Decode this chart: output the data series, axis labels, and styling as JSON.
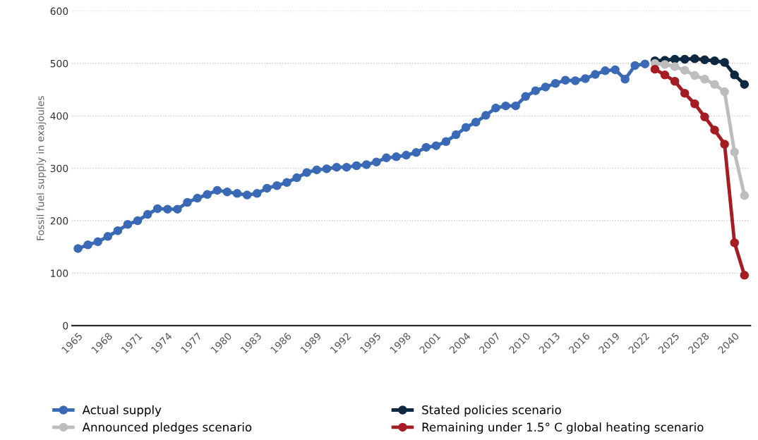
{
  "chart_data": {
    "type": "line",
    "ylabel": "Fossil fuel supply in exajoules",
    "categories": [
      "1965",
      null,
      null,
      "1968",
      null,
      null,
      "1971",
      null,
      null,
      "1974",
      null,
      null,
      "1977",
      null,
      null,
      "1980",
      null,
      null,
      "1983",
      null,
      null,
      "1986",
      null,
      null,
      "1989",
      null,
      null,
      "1992",
      null,
      null,
      "1995",
      null,
      null,
      "1998",
      null,
      null,
      "2001",
      null,
      null,
      "2004",
      null,
      null,
      "2007",
      null,
      null,
      "2010",
      null,
      null,
      "2013",
      null,
      null,
      "2016",
      null,
      null,
      "2019",
      null,
      null,
      "2022",
      null,
      null,
      "2025",
      null,
      null,
      "2028",
      null,
      null,
      "2040",
      null
    ],
    "series": [
      {
        "name": "Actual supply",
        "color": "#3a6ab5",
        "values": [
          147,
          154,
          160,
          170,
          181,
          193,
          200,
          212,
          223,
          222,
          222,
          235,
          243,
          250,
          258,
          255,
          252,
          249,
          252,
          262,
          267,
          273,
          282,
          292,
          297,
          299,
          302,
          302,
          305,
          307,
          312,
          320,
          322,
          325,
          330,
          340,
          343,
          351,
          364,
          378,
          388,
          401,
          415,
          419,
          419,
          437,
          448,
          455,
          462,
          468,
          467,
          471,
          479,
          486,
          488,
          470,
          496,
          499,
          null,
          null,
          null,
          null,
          null,
          null,
          null,
          null,
          null,
          null
        ]
      },
      {
        "name": "Stated policies scenario",
        "color": "#0e2841",
        "values": [
          null,
          null,
          null,
          null,
          null,
          null,
          null,
          null,
          null,
          null,
          null,
          null,
          null,
          null,
          null,
          null,
          null,
          null,
          null,
          null,
          null,
          null,
          null,
          null,
          null,
          null,
          null,
          null,
          null,
          null,
          null,
          null,
          null,
          null,
          null,
          null,
          null,
          null,
          null,
          null,
          null,
          null,
          null,
          null,
          null,
          null,
          null,
          null,
          null,
          null,
          null,
          null,
          null,
          null,
          null,
          null,
          null,
          null,
          505,
          506,
          508,
          508,
          509,
          507,
          505,
          502,
          478,
          460
        ]
      },
      {
        "name": "Announced pledges scenario",
        "color": "#bdbdbd",
        "values": [
          null,
          null,
          null,
          null,
          null,
          null,
          null,
          null,
          null,
          null,
          null,
          null,
          null,
          null,
          null,
          null,
          null,
          null,
          null,
          null,
          null,
          null,
          null,
          null,
          null,
          null,
          null,
          null,
          null,
          null,
          null,
          null,
          null,
          null,
          null,
          null,
          null,
          null,
          null,
          null,
          null,
          null,
          null,
          null,
          null,
          null,
          null,
          null,
          null,
          null,
          null,
          null,
          null,
          null,
          null,
          null,
          null,
          null,
          500,
          498,
          494,
          487,
          477,
          470,
          460,
          446,
          331,
          248
        ]
      },
      {
        "name": "Remaining under 1.5° C global heating scenario",
        "color": "#a51c22",
        "values": [
          null,
          null,
          null,
          null,
          null,
          null,
          null,
          null,
          null,
          null,
          null,
          null,
          null,
          null,
          null,
          null,
          null,
          null,
          null,
          null,
          null,
          null,
          null,
          null,
          null,
          null,
          null,
          null,
          null,
          null,
          null,
          null,
          null,
          null,
          null,
          null,
          null,
          null,
          null,
          null,
          null,
          null,
          null,
          null,
          null,
          null,
          null,
          null,
          null,
          null,
          null,
          null,
          null,
          null,
          null,
          null,
          null,
          null,
          489,
          478,
          466,
          443,
          423,
          398,
          373,
          346,
          158,
          96
        ]
      }
    ],
    "ylim": [
      0,
      600
    ],
    "yticks": [
      0,
      100,
      200,
      300,
      400,
      500,
      600
    ],
    "grid": "y",
    "legend": "bottom",
    "marker": "circle",
    "line_style": "solid"
  }
}
